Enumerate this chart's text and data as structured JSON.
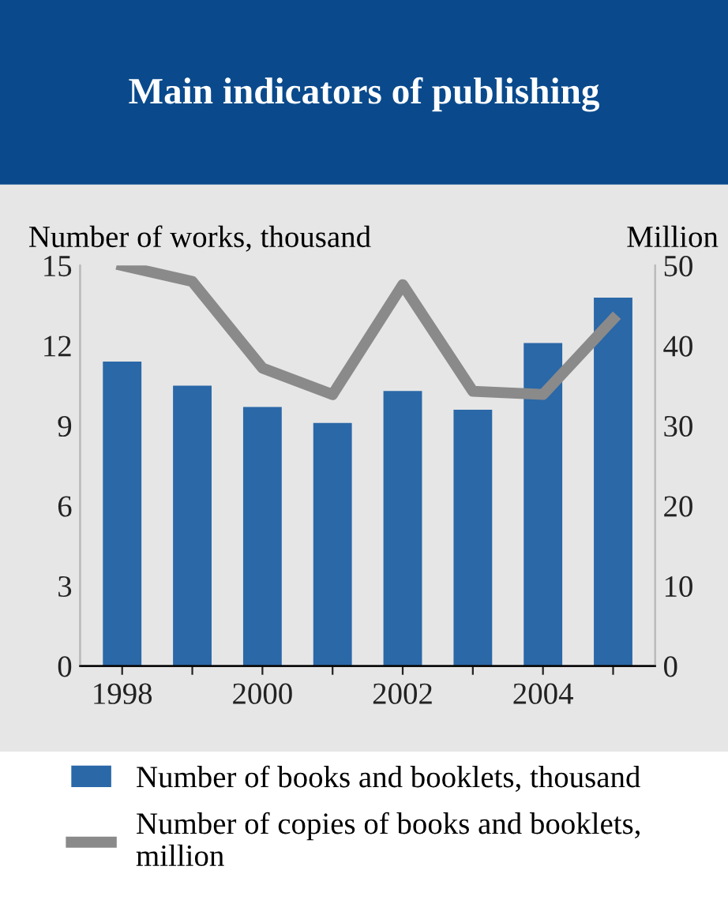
{
  "chart_data": {
    "type": "bar",
    "title": "Main indicators of publishing",
    "ylabel": "Number of works, thousand",
    "y2label": "Million",
    "categories": [
      "1998",
      null,
      "2000",
      null,
      "2002",
      null,
      "2004",
      null
    ],
    "series": [
      {
        "name": "Number of books and booklets, thousand",
        "color": "#2a68a8",
        "values": [
          11.4,
          10.5,
          9.7,
          9.1,
          10.3,
          9.6,
          12.1,
          13.8
        ]
      },
      {
        "name": "Number of copies of books and booklets,\nmillion",
        "type": "line",
        "axis": "y2",
        "color": "#8a8a8a",
        "values": [
          50,
          48,
          37.2,
          33.9,
          47.6,
          34.3,
          33.9,
          43.3
        ]
      }
    ],
    "ylim": [
      0,
      15
    ],
    "yticks": [
      0,
      3,
      6,
      9,
      12,
      15
    ],
    "y2lim": [
      0,
      50
    ],
    "y2ticks": [
      0,
      10,
      20,
      30,
      40,
      50
    ],
    "grid": false,
    "legend": "bottom",
    "marker": "none",
    "line_style": "solid"
  }
}
